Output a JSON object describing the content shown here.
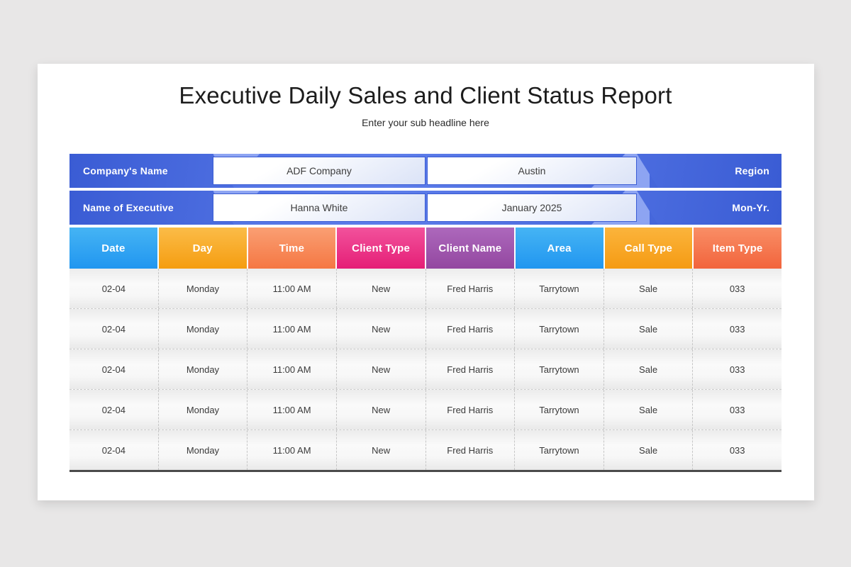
{
  "page": {
    "background_color": "#e8e7e7",
    "card_color": "#ffffff"
  },
  "header": {
    "title": "Executive Daily Sales and Client Status Report",
    "subtitle": "Enter your sub headline here"
  },
  "bands": [
    {
      "left_label": "Company's Name",
      "field1": "ADF Company",
      "field2": "Austin",
      "right_label": "Region"
    },
    {
      "left_label": "Name of Executive",
      "field1": "Hanna White",
      "field2": "January 2025",
      "right_label": "Mon-Yr."
    }
  ],
  "colors": {
    "band_dark": "#3a5cd4",
    "band_mid": "#4b6cdf",
    "band_light": "#5d7dea",
    "band_accent": "#8da4f2",
    "table_bottom_border": "#4b4b4b"
  },
  "table": {
    "columns": [
      {
        "label": "Date",
        "gradient": [
          "#45b4f4",
          "#2196f0"
        ]
      },
      {
        "label": "Day",
        "gradient": [
          "#fbbc48",
          "#f59d10"
        ]
      },
      {
        "label": "Time",
        "gradient": [
          "#fa9f73",
          "#f57743"
        ]
      },
      {
        "label": "Client Type",
        "gradient": [
          "#f2529c",
          "#e51e76"
        ]
      },
      {
        "label": "Client Name",
        "gradient": [
          "#ad68bc",
          "#9347a0"
        ]
      },
      {
        "label": "Area",
        "gradient": [
          "#45b4f4",
          "#2196f0"
        ]
      },
      {
        "label": "Call Type",
        "gradient": [
          "#fbb43c",
          "#f59b13"
        ]
      },
      {
        "label": "Item Type",
        "gradient": [
          "#f98e66",
          "#f2643c"
        ]
      }
    ],
    "rows": [
      [
        "02-04",
        "Monday",
        "11:00 AM",
        "New",
        "Fred Harris",
        "Tarrytown",
        "Sale",
        "033"
      ],
      [
        "02-04",
        "Monday",
        "11:00 AM",
        "New",
        "Fred Harris",
        "Tarrytown",
        "Sale",
        "033"
      ],
      [
        "02-04",
        "Monday",
        "11:00 AM",
        "New",
        "Fred Harris",
        "Tarrytown",
        "Sale",
        "033"
      ],
      [
        "02-04",
        "Monday",
        "11:00 AM",
        "New",
        "Fred Harris",
        "Tarrytown",
        "Sale",
        "033"
      ],
      [
        "02-04",
        "Monday",
        "11:00 AM",
        "New",
        "Fred Harris",
        "Tarrytown",
        "Sale",
        "033"
      ]
    ]
  }
}
